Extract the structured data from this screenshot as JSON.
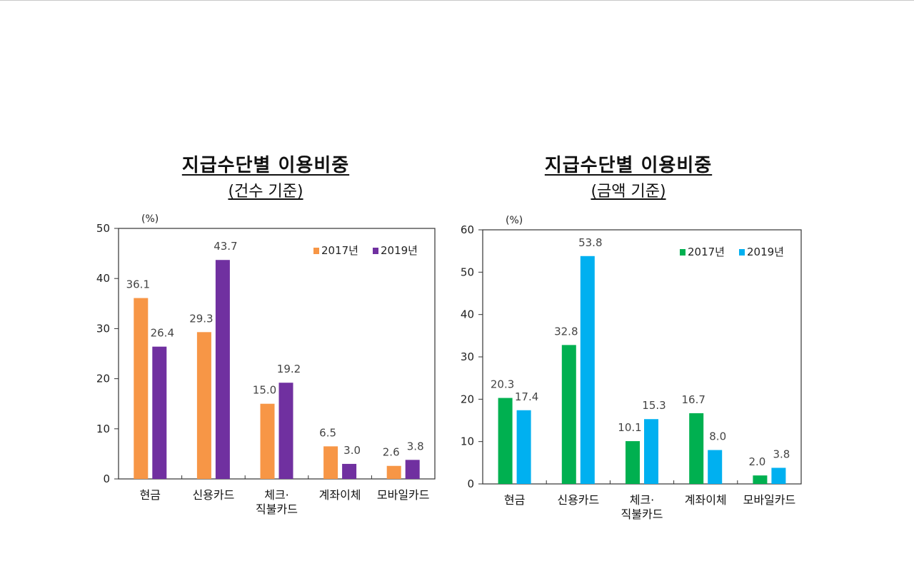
{
  "chart_data": [
    {
      "type": "bar",
      "title": "지급수단별 이용비중",
      "subtitle": "(건수 기준)",
      "ylabel": "(%)",
      "ylim": [
        0,
        50
      ],
      "yticks": [
        0,
        10,
        20,
        30,
        40,
        50
      ],
      "categories": [
        [
          "현금"
        ],
        [
          "신용카드"
        ],
        [
          "체크·",
          "직불카드"
        ],
        [
          "계좌이체"
        ],
        [
          "모바일카드"
        ]
      ],
      "series": [
        {
          "name": "2017년",
          "color": "#f79646",
          "values": [
            36.1,
            29.3,
            15.0,
            6.5,
            2.6
          ],
          "labels": [
            "36.1",
            "29.3",
            "15.0",
            "6.5",
            "2.6"
          ]
        },
        {
          "name": "2019년",
          "color": "#7030a0",
          "values": [
            26.4,
            43.7,
            19.2,
            3.0,
            3.8
          ],
          "labels": [
            "26.4",
            "43.7",
            "19.2",
            "3.0",
            "3.8"
          ]
        }
      ],
      "legend": "top-right",
      "grid": false
    },
    {
      "type": "bar",
      "title": "지급수단별 이용비중",
      "subtitle": "(금액 기준)",
      "ylabel": "(%)",
      "ylim": [
        0,
        60
      ],
      "yticks": [
        0,
        10,
        20,
        30,
        40,
        50,
        60
      ],
      "categories": [
        [
          "현금"
        ],
        [
          "신용카드"
        ],
        [
          "체크·",
          "직불카드"
        ],
        [
          "계좌이체"
        ],
        [
          "모바일카드"
        ]
      ],
      "series": [
        {
          "name": "2017년",
          "color": "#00b050",
          "values": [
            20.3,
            32.8,
            10.1,
            16.7,
            2.0
          ],
          "labels": [
            "20.3",
            "32.8",
            "10.1",
            "16.7",
            "2.0"
          ]
        },
        {
          "name": "2019년",
          "color": "#00b0f0",
          "values": [
            17.4,
            53.8,
            15.3,
            8.0,
            3.8
          ],
          "labels": [
            "17.4",
            "53.8",
            "15.3",
            "8.0",
            "3.8"
          ]
        }
      ],
      "legend": "top-right",
      "grid": false
    }
  ]
}
